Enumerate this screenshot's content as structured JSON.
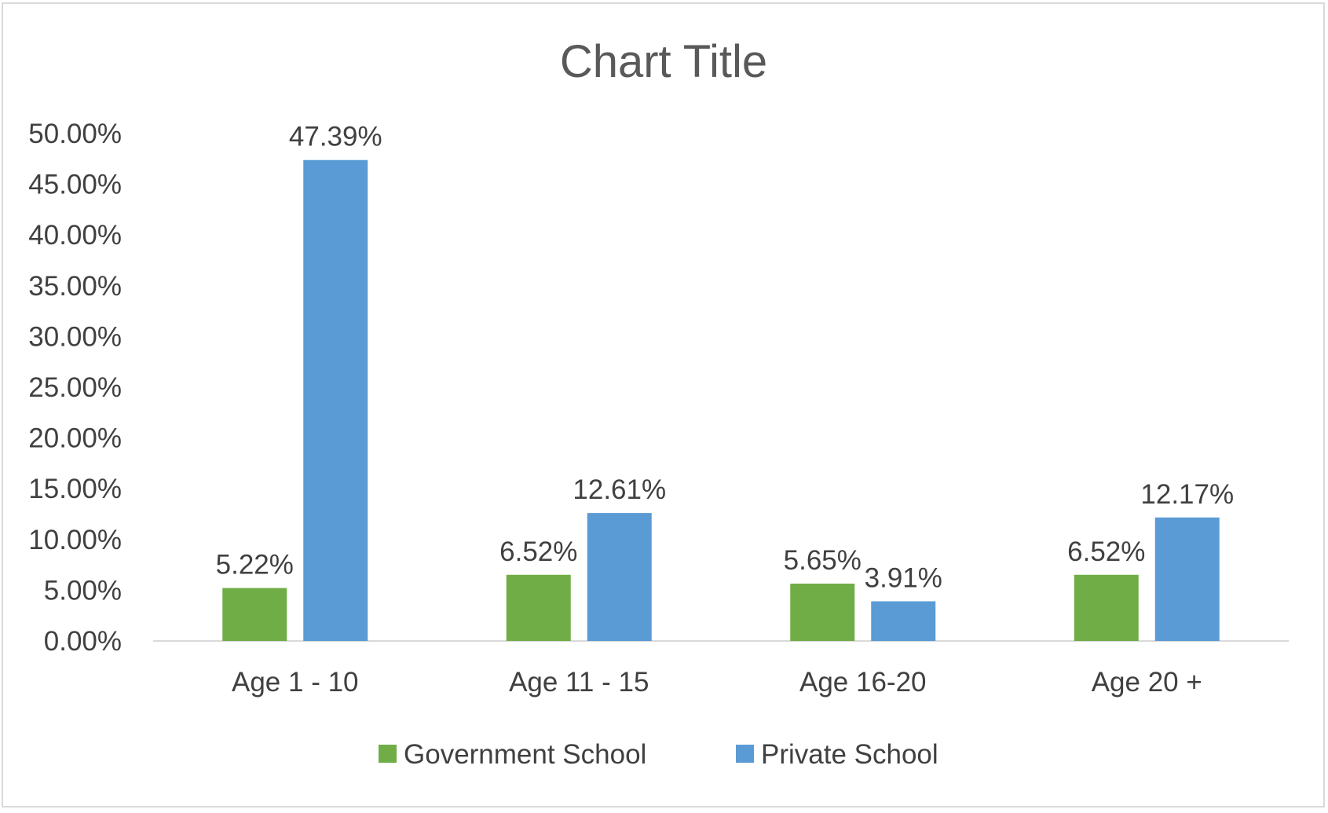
{
  "chart_data": {
    "type": "bar",
    "title": "Chart Title",
    "xlabel": "",
    "ylabel": "",
    "categories": [
      "Age 1 - 10",
      "Age 11 - 15",
      "Age 16-20",
      "Age 20 +"
    ],
    "series": [
      {
        "name": "Government School",
        "color": "#70ad47",
        "values": [
          5.22,
          6.52,
          5.65,
          6.52
        ],
        "labels": [
          "5.22%",
          "6.52%",
          "5.65%",
          "6.52%"
        ]
      },
      {
        "name": "Private School",
        "color": "#5b9bd5",
        "values": [
          47.39,
          12.61,
          3.91,
          12.17
        ],
        "labels": [
          "47.39%",
          "12.61%",
          "3.91%",
          "12.17%"
        ]
      }
    ],
    "ylim": [
      0,
      50
    ],
    "yticks": [
      0,
      5,
      10,
      15,
      20,
      25,
      30,
      35,
      40,
      45,
      50
    ],
    "ytick_labels": [
      "0.00%",
      "5.00%",
      "10.00%",
      "15.00%",
      "20.00%",
      "25.00%",
      "30.00%",
      "35.00%",
      "40.00%",
      "45.00%",
      "50.00%"
    ],
    "grid": false,
    "legend_position": "bottom"
  }
}
